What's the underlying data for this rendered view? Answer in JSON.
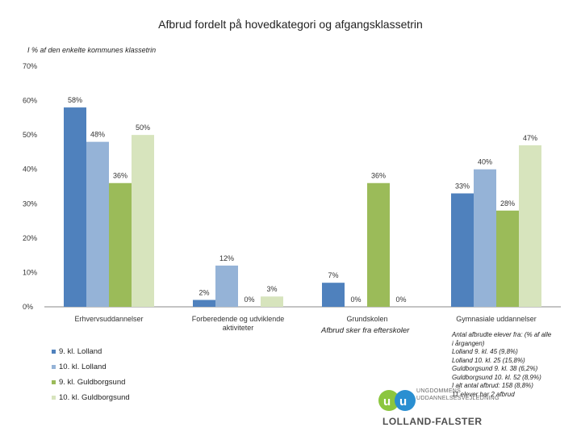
{
  "header": {
    "title": "Afbrud fordelt på hovedkategori og afgangsklassetrin",
    "subtitle": "I % af den enkelte kommunes klassetrin"
  },
  "chart_data": {
    "type": "bar",
    "title": "Afbrud fordelt på hovedkategori og afgangsklassetrin",
    "ylim": [
      0,
      70
    ],
    "yticks": [
      "0%",
      "10%",
      "20%",
      "30%",
      "40%",
      "50%",
      "60%",
      "70%"
    ],
    "categories": [
      "Erhvervsuddannelser",
      "Forberedende og udviklende aktiviteter",
      "Grundskolen",
      "Gymnasiale uddannelser"
    ],
    "series": [
      {
        "name": "9. kl. Lolland",
        "color": "#4f81bd",
        "values": [
          58,
          2,
          7,
          33
        ],
        "labels": [
          "58%",
          "2%",
          "7%",
          "33%"
        ]
      },
      {
        "name": "10. kl. Lolland",
        "color": "#95b3d7",
        "values": [
          48,
          12,
          0,
          40
        ],
        "labels": [
          "48%",
          "12%",
          "0%",
          "40%"
        ]
      },
      {
        "name": "9. kl. Guldborgsund",
        "color": "#9bbb59",
        "values": [
          36,
          0,
          36,
          28
        ],
        "labels": [
          "36%",
          "0%",
          "36%",
          "28%"
        ]
      },
      {
        "name": "10. kl. Guldborgsund",
        "color": "#d7e4bd",
        "values": [
          50,
          3,
          0,
          47
        ],
        "labels": [
          "50%",
          "3%",
          "0%",
          "47%"
        ]
      }
    ]
  },
  "annotation": {
    "grundskolen_sub": "Afbrud sker fra efterskoler"
  },
  "notes": [
    "Antal afbrudte elever fra: (% af alle",
    "i årgangen)",
    "Lolland 9. kl. 45 (9,8%)",
    "Lolland 10. kl. 25 (15,8%)",
    "Guldborgsund 9. kl. 38 (6,2%)",
    "Guldborgsund 10. kl. 52 (8,9%)",
    "I alt antal afbrud: 158 (8,8%)",
    "11 elever har 2 afbrud"
  ],
  "logo": {
    "line1": "UNGDOMMENS",
    "line2": "UDDANNELSESVEJLEDNING",
    "line3": "LOLLAND-FALSTER",
    "colors": {
      "blue": "#2a8fd1",
      "green": "#8cc63f",
      "letter": "#ffffff"
    }
  }
}
